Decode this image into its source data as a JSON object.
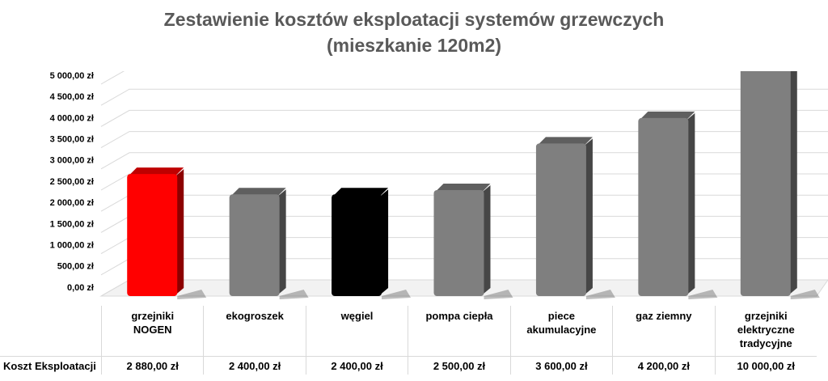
{
  "chart_data": {
    "type": "bar3d",
    "title": "Zestawienie kosztów eksploatacji systemów grzewczych\n(mieszkanie 120m2)",
    "categories": [
      "grzejniki\nNOGEN",
      "ekogroszek",
      "węgiel",
      "pompa ciepła",
      "piece\nakumulacyjne",
      "gaz ziemny",
      "grzejniki\nelektryczne\ntradycyjne"
    ],
    "series": [
      {
        "name": "Koszt Eksploatacji",
        "values": [
          2880,
          2400,
          2400,
          2500,
          3600,
          4200,
          10000
        ],
        "value_labels": [
          "2 880,00 zł",
          "2 400,00 zł",
          "2 400,00 zł",
          "2 500,00 zł",
          "3 600,00 zł",
          "4 200,00 zł",
          "10 000,00 zł"
        ],
        "colors": [
          "#ff0000",
          "#7f7f7f",
          "#000000",
          "#7f7f7f",
          "#7f7f7f",
          "#7f7f7f",
          "#7f7f7f"
        ]
      }
    ],
    "ylim": [
      0,
      5000
    ],
    "yticks": [
      {
        "value": 0,
        "label": "0,00 zł"
      },
      {
        "value": 500,
        "label": "500,00 zł"
      },
      {
        "value": 1000,
        "label": "1 000,00 zł"
      },
      {
        "value": 1500,
        "label": "1 500,00 zł"
      },
      {
        "value": 2000,
        "label": "2 000,00 zł"
      },
      {
        "value": 2500,
        "label": "2 500,00 zł"
      },
      {
        "value": 3000,
        "label": "3 000,00 zł"
      },
      {
        "value": 3500,
        "label": "3 500,00 zł"
      },
      {
        "value": 4000,
        "label": "4 000,00 zł"
      },
      {
        "value": 4500,
        "label": "4 500,00 zł"
      },
      {
        "value": 5000,
        "label": "5 000,00 zł"
      }
    ],
    "grid": true
  }
}
